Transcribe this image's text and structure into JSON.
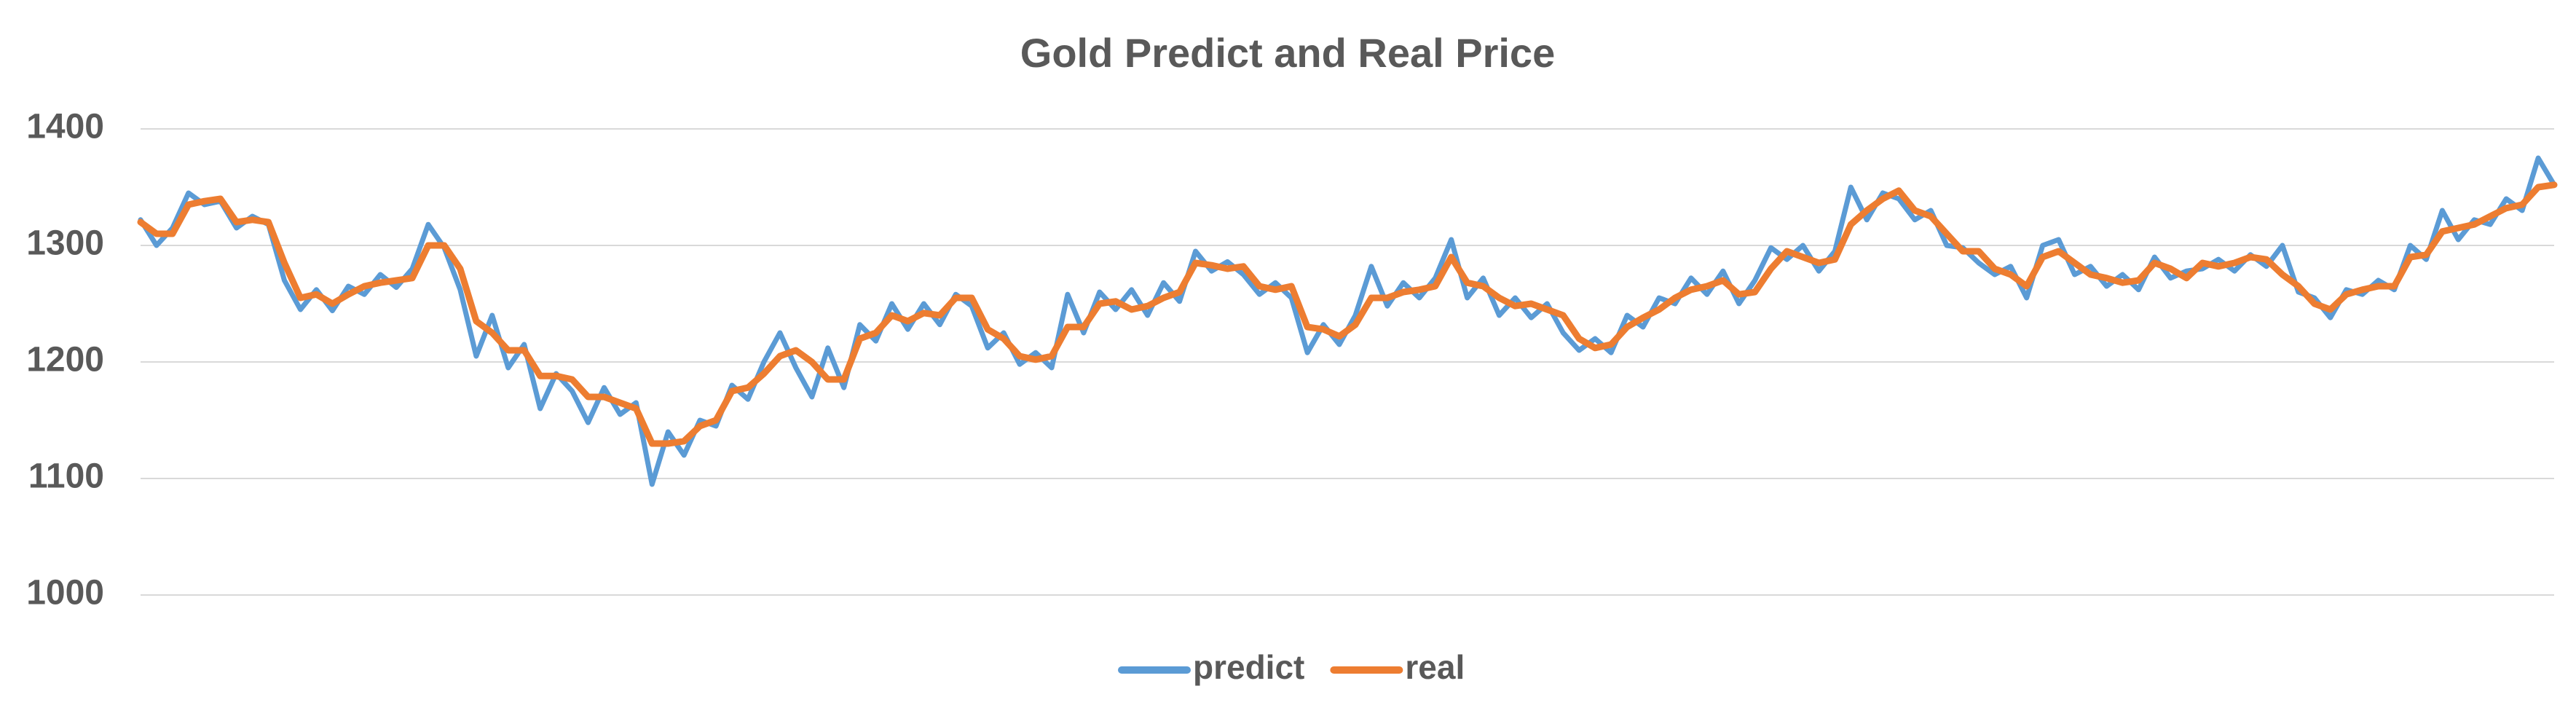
{
  "chart_data": {
    "type": "line",
    "title": "Gold Predict and Real Price",
    "ylim": [
      1000,
      1400
    ],
    "yticks": [
      1000,
      1100,
      1200,
      1300,
      1400
    ],
    "grid": true,
    "legend": "bottom",
    "series": [
      {
        "name": "predict",
        "color": "#5b9bd5",
        "values": [
          1322,
          1300,
          1315,
          1345,
          1335,
          1338,
          1315,
          1325,
          1318,
          1270,
          1245,
          1262,
          1244,
          1265,
          1258,
          1275,
          1264,
          1280,
          1318,
          1298,
          1262,
          1205,
          1240,
          1195,
          1215,
          1160,
          1190,
          1175,
          1148,
          1178,
          1155,
          1165,
          1095,
          1140,
          1120,
          1150,
          1145,
          1180,
          1168,
          1200,
          1225,
          1195,
          1170,
          1212,
          1178,
          1232,
          1218,
          1250,
          1228,
          1250,
          1232,
          1258,
          1248,
          1212,
          1225,
          1198,
          1208,
          1195,
          1258,
          1225,
          1260,
          1245,
          1262,
          1240,
          1268,
          1252,
          1295,
          1278,
          1286,
          1275,
          1258,
          1268,
          1255,
          1208,
          1232,
          1215,
          1240,
          1282,
          1248,
          1268,
          1255,
          1272,
          1305,
          1255,
          1272,
          1240,
          1255,
          1238,
          1250,
          1225,
          1210,
          1220,
          1208,
          1240,
          1230,
          1255,
          1250,
          1272,
          1258,
          1278,
          1250,
          1270,
          1298,
          1288,
          1300,
          1278,
          1295,
          1350,
          1322,
          1345,
          1340,
          1322,
          1330,
          1300,
          1298,
          1285,
          1275,
          1282,
          1255,
          1300,
          1305,
          1275,
          1282,
          1265,
          1275,
          1262,
          1290,
          1272,
          1278,
          1280,
          1288,
          1278,
          1292,
          1282,
          1300,
          1260,
          1255,
          1238,
          1262,
          1258,
          1270,
          1262,
          1300,
          1288,
          1330,
          1305,
          1322,
          1318,
          1340,
          1330,
          1375,
          1352
        ]
      },
      {
        "name": "real",
        "color": "#ed7d31",
        "values": [
          1320,
          1310,
          1310,
          1335,
          1338,
          1340,
          1320,
          1322,
          1320,
          1285,
          1255,
          1258,
          1250,
          1258,
          1265,
          1268,
          1270,
          1272,
          1300,
          1300,
          1280,
          1235,
          1225,
          1210,
          1210,
          1188,
          1188,
          1185,
          1170,
          1170,
          1165,
          1160,
          1130,
          1130,
          1132,
          1145,
          1150,
          1175,
          1178,
          1190,
          1205,
          1210,
          1200,
          1185,
          1185,
          1220,
          1225,
          1240,
          1235,
          1242,
          1240,
          1255,
          1255,
          1228,
          1220,
          1205,
          1202,
          1205,
          1230,
          1230,
          1250,
          1252,
          1245,
          1248,
          1255,
          1260,
          1285,
          1283,
          1280,
          1282,
          1265,
          1262,
          1265,
          1230,
          1228,
          1222,
          1232,
          1255,
          1255,
          1260,
          1262,
          1265,
          1290,
          1268,
          1265,
          1255,
          1248,
          1250,
          1245,
          1240,
          1220,
          1212,
          1215,
          1230,
          1238,
          1245,
          1255,
          1262,
          1265,
          1270,
          1258,
          1260,
          1280,
          1295,
          1290,
          1285,
          1288,
          1318,
          1330,
          1340,
          1347,
          1330,
          1325,
          1310,
          1295,
          1295,
          1280,
          1275,
          1265,
          1290,
          1295,
          1285,
          1275,
          1272,
          1268,
          1270,
          1285,
          1280,
          1272,
          1285,
          1282,
          1285,
          1290,
          1288,
          1275,
          1265,
          1250,
          1245,
          1258,
          1262,
          1265,
          1265,
          1290,
          1292,
          1312,
          1315,
          1318,
          1325,
          1332,
          1335,
          1350,
          1352
        ]
      }
    ]
  }
}
